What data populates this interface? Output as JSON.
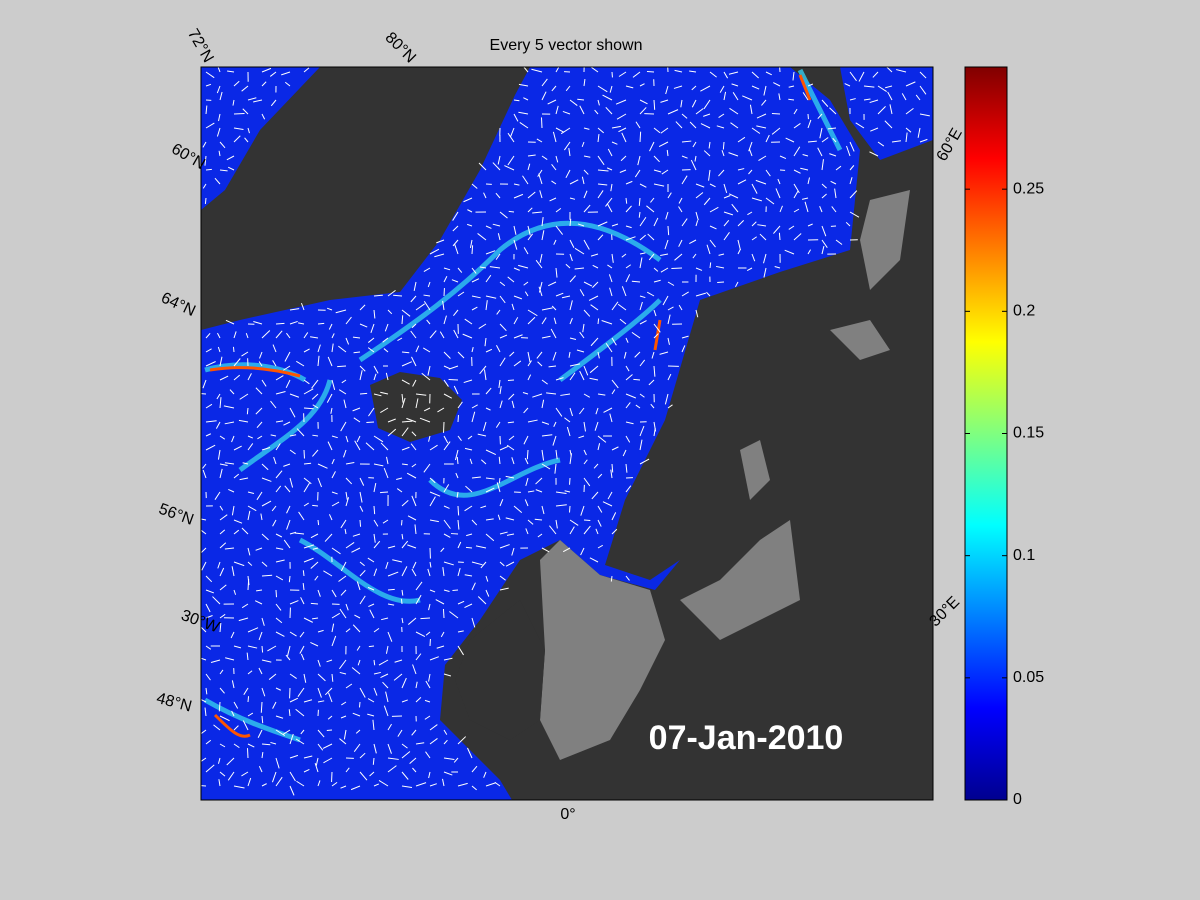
{
  "title": "Every 5 vector shown",
  "date_label": "07-Jan-2010",
  "graticule_labels": [
    "72°N",
    "80°N",
    "60°N",
    "64°N",
    "56°N",
    "30°W",
    "48°N",
    "0°",
    "60°E",
    "30°E"
  ],
  "colorbar": {
    "clim": [
      0,
      0.3
    ],
    "ticks": [
      0,
      0.05,
      0.1,
      0.15,
      0.2,
      0.25
    ]
  }
}
